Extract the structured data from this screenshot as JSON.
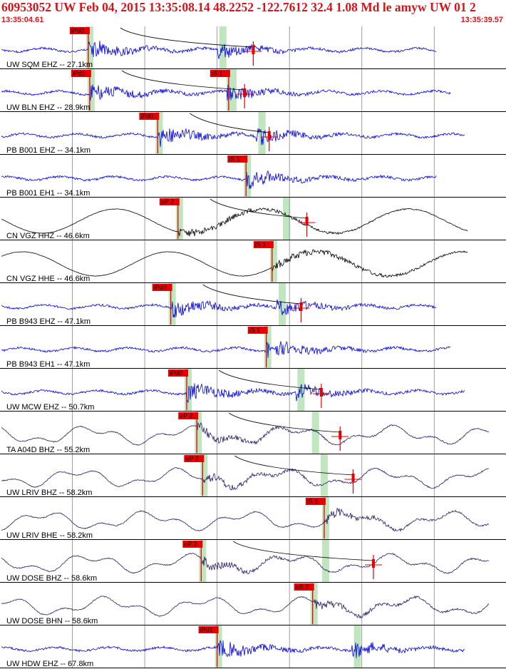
{
  "header": {
    "title": "60953052 UW Feb 04, 2015 13:35:08.14    48.2252 -122.7612 32.4 1.08 Md le amyw UW 01    2",
    "start_time": "13:35:04.61",
    "end_time": "13:35:39.57"
  },
  "colors": {
    "header_text": "#d4151b",
    "pick_box": "#e60000",
    "pick_text": "#000000",
    "pick_window": "#bfe6bf",
    "trace_blue": "#0000dd",
    "trace_black": "#000000",
    "trace_navy": "#2a1a66",
    "travel_curve": "#000000"
  },
  "chart_data": {
    "type": "line",
    "title": "60953052 UW Feb 04, 2015 13:35:08.14    48.2252 -122.7612 32.4 1.08 Md le amyw UW 01    2",
    "x_range": [
      "13:35:04.61",
      "13:35:39.57"
    ],
    "x_start_s": 0.0,
    "x_end_s": 34.96,
    "series": [
      {
        "label": "UW SQM EHZ -- 27.1km",
        "color": "blue",
        "style": "hf",
        "picks": [
          {
            "label": "iPd0",
            "t": 6.1
          }
        ],
        "s_window_t": 15.3,
        "coda_t": 17.5
      },
      {
        "label": "UW BLN EHZ -- 28.9km",
        "color": "blue",
        "style": "hf",
        "picks": [
          {
            "label": "iPd1",
            "t": 6.2
          },
          {
            "label": "iS 1",
            "t": 15.8
          }
        ],
        "s_window_t": 16.0,
        "coda_t": 16.9
      },
      {
        "label": "PB B001 EHZ -- 34.1km",
        "color": "blue",
        "style": "hf",
        "picks": [
          {
            "label": "iPd0",
            "t": 10.9
          }
        ],
        "s_window_t": 18.0,
        "coda_t": 18.6
      },
      {
        "label": "PB B001 EH1 -- 34.1km",
        "color": "blue",
        "style": "hf",
        "picks": [
          {
            "label": "iS 1",
            "t": 17.0
          }
        ],
        "s_window_t": 0,
        "coda_t": 0
      },
      {
        "label": "CN VGZ HHZ -- 46.6km",
        "color": "black",
        "style": "lp",
        "picks": [
          {
            "label": "eP 2",
            "t": 12.3
          }
        ],
        "s_window_t": 19.7,
        "coda_t": 21.2
      },
      {
        "label": "CN VGZ HHE -- 46.6km",
        "color": "black",
        "style": "lp",
        "picks": [
          {
            "label": "iS 1",
            "t": 18.8
          }
        ],
        "s_window_t": 0,
        "coda_t": 0
      },
      {
        "label": "PB B943 EHZ -- 47.1km",
        "color": "blue",
        "style": "hf",
        "picks": [
          {
            "label": "iPd0",
            "t": 11.8
          }
        ],
        "s_window_t": 19.4,
        "coda_t": 20.8
      },
      {
        "label": "PB B943 EH1 -- 47.1km",
        "color": "blue",
        "style": "hf",
        "picks": [
          {
            "label": "iS 1",
            "t": 18.4
          }
        ],
        "s_window_t": 0,
        "coda_t": 0
      },
      {
        "label": "UW MCW EHZ -- 50.7km",
        "color": "blue",
        "style": "hf",
        "picks": [
          {
            "label": "iPd0",
            "t": 12.9
          }
        ],
        "s_window_t": 20.7,
        "coda_t": 22.2
      },
      {
        "label": "TA A04D BHZ -- 55.2km",
        "color": "navy",
        "style": "mix",
        "picks": [
          {
            "label": "eP 2",
            "t": 13.6
          }
        ],
        "s_window_t": 21.7,
        "coda_t": 23.5
      },
      {
        "label": "UW LRIV BHZ -- 58.2km",
        "color": "navy",
        "style": "mix",
        "picks": [
          {
            "label": "eP 2",
            "t": 14.0
          }
        ],
        "s_window_t": 22.3,
        "coda_t": 24.4
      },
      {
        "label": "UW LRIV BHE -- 58.2km",
        "color": "navy",
        "style": "mix",
        "picks": [
          {
            "label": "iS 1",
            "t": 22.4
          }
        ],
        "s_window_t": 0,
        "coda_t": 0
      },
      {
        "label": "UW DOSE BHZ -- 58.6km",
        "color": "navy",
        "style": "mix",
        "picks": [
          {
            "label": "eP 2",
            "t": 13.9
          }
        ],
        "s_window_t": 22.4,
        "coda_t": 25.8
      },
      {
        "label": "UW DOSE BHN -- 58.6km",
        "color": "navy",
        "style": "mix",
        "picks": [
          {
            "label": "eS 2",
            "t": 21.6
          }
        ],
        "s_window_t": 0,
        "coda_t": 0
      },
      {
        "label": "UW HDW EHZ -- 67.8km",
        "color": "blue",
        "style": "hf",
        "picks": [
          {
            "label": "iPd1",
            "t": 15.0
          }
        ],
        "s_window_t": 24.6,
        "coda_t": 0
      }
    ],
    "grid": true,
    "grid_interval_s": 5
  }
}
